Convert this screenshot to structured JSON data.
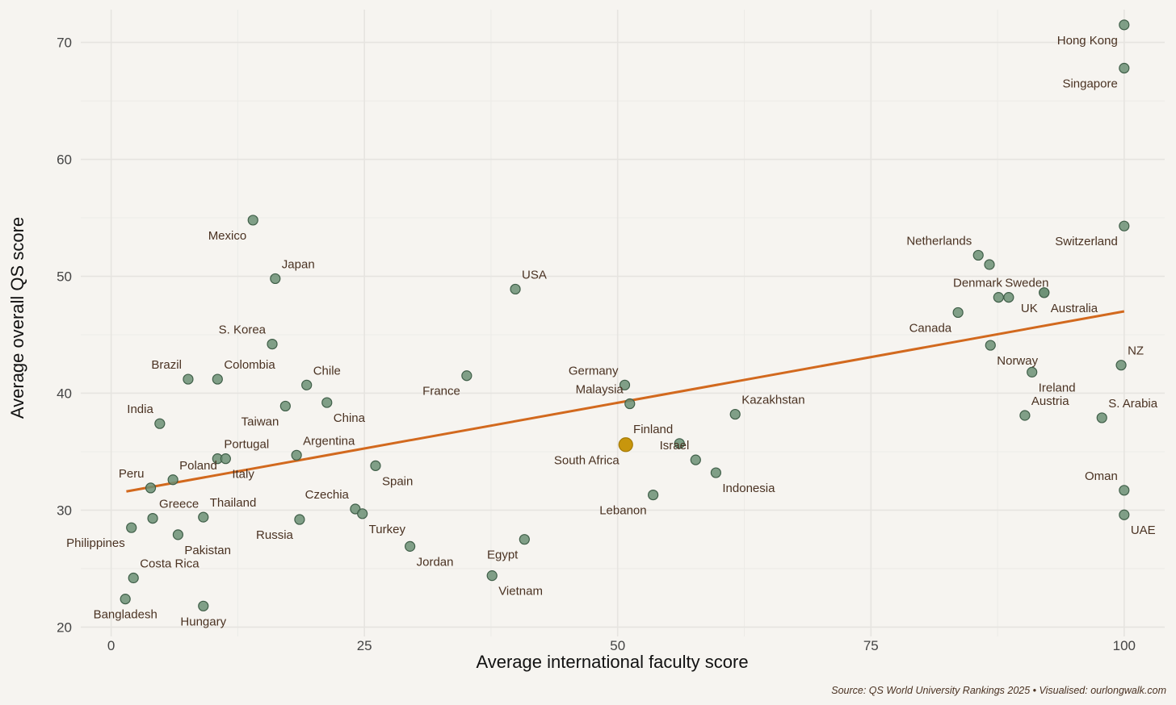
{
  "chart_data": {
    "type": "scatter",
    "title": "",
    "xlabel": "Average international faculty score",
    "ylabel": "Average overall QS score",
    "xlim": [
      -3,
      104
    ],
    "ylim": [
      19.2,
      72.8
    ],
    "xticks": [
      0,
      25,
      50,
      75,
      100
    ],
    "yticks": [
      20,
      30,
      40,
      50,
      60,
      70
    ],
    "grid": true,
    "caption": "Source: QS World University Rankings 2025 • Visualised: ourlongwalk.com",
    "highlight_color": "#c8960c",
    "point_color": "#6b8f74",
    "trend_color": "#d2691e",
    "trend_line": {
      "x": [
        1.5,
        100
      ],
      "y": [
        31.6,
        47.0
      ]
    },
    "points": [
      {
        "label": "Hong Kong",
        "x": 100,
        "y": 71.5,
        "pos": "bl"
      },
      {
        "label": "Singapore",
        "x": 100,
        "y": 67.8,
        "pos": "bl"
      },
      {
        "label": "Switzerland",
        "x": 100,
        "y": 54.3,
        "pos": "bl"
      },
      {
        "label": "Mexico",
        "x": 14,
        "y": 54.8,
        "pos": "bl"
      },
      {
        "label": "Japan",
        "x": 16.2,
        "y": 49.8,
        "pos": "tr"
      },
      {
        "label": "USA",
        "x": 39.9,
        "y": 48.9,
        "pos": "tr"
      },
      {
        "label": "Netherlands",
        "x": 85.6,
        "y": 51.8,
        "pos": "tl"
      },
      {
        "label": "",
        "x": 86.7,
        "y": 51.0,
        "pos": "tr"
      },
      {
        "label": "Sweden",
        "x": 87.6,
        "y": 48.2,
        "pos": "tr"
      },
      {
        "label": "Denmark",
        "x": 88.6,
        "y": 48.2,
        "pos": "tl"
      },
      {
        "label": "UK",
        "x": 92.1,
        "y": 48.6,
        "pos": "bl"
      },
      {
        "label": "Australia",
        "x": 92.1,
        "y": 48.6,
        "pos": "br"
      },
      {
        "label": "Canada",
        "x": 83.6,
        "y": 46.9,
        "pos": "bl"
      },
      {
        "label": "Norway",
        "x": 86.8,
        "y": 44.1,
        "pos": "br"
      },
      {
        "label": "Ireland",
        "x": 90.9,
        "y": 41.8,
        "pos": "br"
      },
      {
        "label": "NZ",
        "x": 99.7,
        "y": 42.4,
        "pos": "tr"
      },
      {
        "label": "S. Korea",
        "x": 15.9,
        "y": 44.2,
        "pos": "tl"
      },
      {
        "label": "Colombia",
        "x": 10.5,
        "y": 41.2,
        "pos": "tr"
      },
      {
        "label": "Brazil",
        "x": 7.6,
        "y": 41.2,
        "pos": "tl"
      },
      {
        "label": "Chile",
        "x": 19.3,
        "y": 40.7,
        "pos": "tr"
      },
      {
        "label": "France",
        "x": 35.1,
        "y": 41.5,
        "pos": "bl"
      },
      {
        "label": "Germany",
        "x": 50.7,
        "y": 40.7,
        "pos": "tl"
      },
      {
        "label": "Malaysia",
        "x": 51.2,
        "y": 39.1,
        "pos": "tl"
      },
      {
        "label": "Taiwan",
        "x": 17.2,
        "y": 38.9,
        "pos": "bl"
      },
      {
        "label": "China",
        "x": 21.3,
        "y": 39.2,
        "pos": "br"
      },
      {
        "label": "India",
        "x": 4.8,
        "y": 37.4,
        "pos": "tl"
      },
      {
        "label": "Kazakhstan",
        "x": 61.6,
        "y": 38.2,
        "pos": "tr"
      },
      {
        "label": "Austria",
        "x": 90.2,
        "y": 38.1,
        "pos": "tr"
      },
      {
        "label": "S. Arabia",
        "x": 97.8,
        "y": 37.9,
        "pos": "tr"
      },
      {
        "label": "South Africa",
        "x": 50.8,
        "y": 35.6,
        "pos": "bl",
        "highlight": true
      },
      {
        "label": "Finland",
        "x": 56.1,
        "y": 35.7,
        "pos": "tl"
      },
      {
        "label": "Israel",
        "x": 57.7,
        "y": 34.3,
        "pos": "tl"
      },
      {
        "label": "Indonesia",
        "x": 59.7,
        "y": 33.2,
        "pos": "br"
      },
      {
        "label": "Lebanon",
        "x": 53.5,
        "y": 31.3,
        "pos": "bl"
      },
      {
        "label": "Argentina",
        "x": 18.3,
        "y": 34.7,
        "pos": "tr"
      },
      {
        "label": "Portugal",
        "x": 10.5,
        "y": 34.4,
        "pos": "tr"
      },
      {
        "label": "Italy",
        "x": 11.3,
        "y": 34.4,
        "pos": "br"
      },
      {
        "label": "Spain",
        "x": 26.1,
        "y": 33.8,
        "pos": "br"
      },
      {
        "label": "Poland",
        "x": 6.1,
        "y": 32.6,
        "pos": "tr"
      },
      {
        "label": "Peru",
        "x": 3.9,
        "y": 31.9,
        "pos": "tl"
      },
      {
        "label": "Oman",
        "x": 100,
        "y": 31.7,
        "pos": "tl"
      },
      {
        "label": "Czechia",
        "x": 24.1,
        "y": 30.1,
        "pos": "tl"
      },
      {
        "label": "Turkey",
        "x": 24.8,
        "y": 29.7,
        "pos": "br"
      },
      {
        "label": "Russia",
        "x": 18.6,
        "y": 29.2,
        "pos": "bl"
      },
      {
        "label": "Thailand",
        "x": 9.1,
        "y": 29.4,
        "pos": "tr"
      },
      {
        "label": "Greece",
        "x": 4.1,
        "y": 29.3,
        "pos": "tr"
      },
      {
        "label": "Philippines",
        "x": 2.0,
        "y": 28.5,
        "pos": "bl"
      },
      {
        "label": "Pakistan",
        "x": 6.6,
        "y": 27.9,
        "pos": "br"
      },
      {
        "label": "UAE",
        "x": 100,
        "y": 29.6,
        "pos": "br"
      },
      {
        "label": "Jordan",
        "x": 29.5,
        "y": 26.9,
        "pos": "br"
      },
      {
        "label": "Egypt",
        "x": 40.8,
        "y": 27.5,
        "pos": "bl"
      },
      {
        "label": "Vietnam",
        "x": 37.6,
        "y": 24.4,
        "pos": "br"
      },
      {
        "label": "Costa Rica",
        "x": 2.2,
        "y": 24.2,
        "pos": "tr"
      },
      {
        "label": "Bangladesh",
        "x": 1.4,
        "y": 22.4,
        "pos": "bm"
      },
      {
        "label": "Hungary",
        "x": 9.1,
        "y": 21.8,
        "pos": "bm"
      }
    ]
  }
}
